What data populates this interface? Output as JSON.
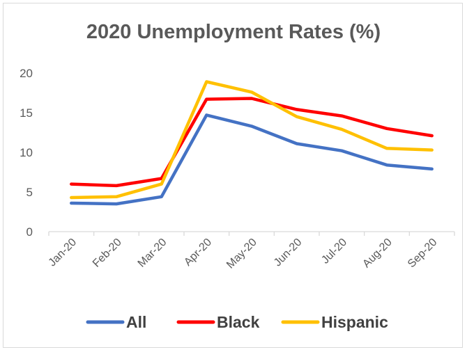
{
  "chart_data": {
    "type": "line",
    "title": "2020 Unemployment Rates (%)",
    "xlabel": "",
    "ylabel": "",
    "categories": [
      "Jan-20",
      "Feb-20",
      "Mar-20",
      "Apr-20",
      "May-20",
      "Jun-20",
      "Jul-20",
      "Aug-20",
      "Sep-20"
    ],
    "ylim": [
      0,
      20
    ],
    "yticks": [
      "0",
      "5",
      "10",
      "15",
      "20"
    ],
    "grid": false,
    "legend_position": "bottom",
    "series": [
      {
        "name": "All",
        "color": "#4472c4",
        "values": [
          3.6,
          3.5,
          4.4,
          14.7,
          13.3,
          11.1,
          10.2,
          8.4,
          7.9
        ]
      },
      {
        "name": "Black",
        "color": "#ff0000",
        "values": [
          6.0,
          5.8,
          6.7,
          16.7,
          16.8,
          15.4,
          14.6,
          13.0,
          12.1
        ]
      },
      {
        "name": "Hispanic",
        "color": "#ffc000",
        "values": [
          4.3,
          4.4,
          6.0,
          18.9,
          17.6,
          14.5,
          12.9,
          10.5,
          10.3
        ]
      }
    ]
  }
}
